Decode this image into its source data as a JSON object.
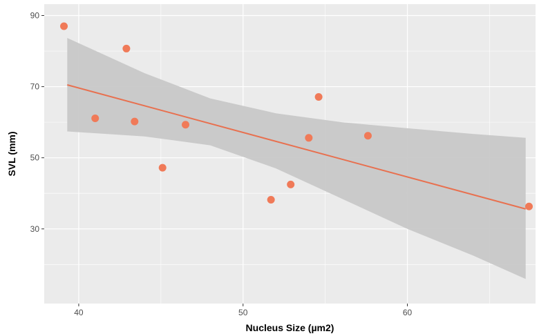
{
  "chart_data": {
    "type": "scatter",
    "title": "",
    "xlabel": "Nucleus Size (µm2)",
    "ylabel": "SVL (mm)",
    "xlim": [
      37.9,
      67.8
    ],
    "ylim": [
      9.0,
      93.2
    ],
    "x_ticks": [
      40,
      50,
      60
    ],
    "y_ticks": [
      30,
      50,
      70,
      90
    ],
    "grid": true,
    "points": [
      {
        "x": 39.1,
        "y": 87.0
      },
      {
        "x": 41.0,
        "y": 61.1
      },
      {
        "x": 42.9,
        "y": 80.7
      },
      {
        "x": 43.4,
        "y": 60.2
      },
      {
        "x": 45.1,
        "y": 47.2
      },
      {
        "x": 46.5,
        "y": 59.3
      },
      {
        "x": 51.7,
        "y": 38.2
      },
      {
        "x": 52.9,
        "y": 42.5
      },
      {
        "x": 54.0,
        "y": 55.6
      },
      {
        "x": 54.6,
        "y": 67.1
      },
      {
        "x": 57.6,
        "y": 56.2
      },
      {
        "x": 67.4,
        "y": 36.3
      }
    ],
    "trend_line": {
      "x": [
        39.3,
        67.2
      ],
      "y": [
        70.5,
        35.6
      ]
    },
    "confidence_band": {
      "x": [
        39.3,
        44.0,
        48.0,
        52.0,
        56.0,
        60.0,
        64.0,
        67.2
      ],
      "upper": [
        83.7,
        73.8,
        66.7,
        62.5,
        60.0,
        58.3,
        56.7,
        55.6
      ],
      "lower": [
        57.4,
        56.0,
        53.5,
        47.0,
        38.5,
        30.0,
        22.5,
        15.9
      ]
    },
    "colors": {
      "points": "#F07A58",
      "trend_line": "#E8704F",
      "band": "#C8C8C8",
      "panel": "#EBEBEB",
      "grid": "#FFFFFF"
    }
  }
}
